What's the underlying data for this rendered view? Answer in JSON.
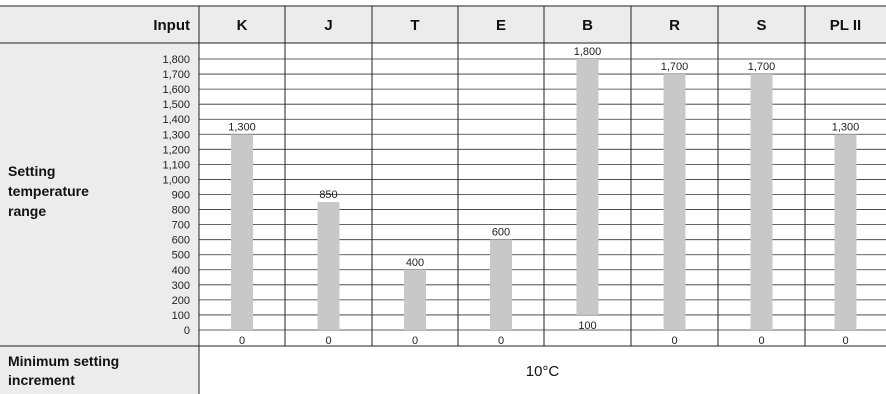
{
  "chart_data": {
    "type": "bar",
    "header_label": "Input",
    "categories": [
      "K",
      "J",
      "T",
      "E",
      "B",
      "R",
      "S",
      "PL II"
    ],
    "ranges": [
      {
        "min": 0,
        "max": 1300
      },
      {
        "min": 0,
        "max": 850
      },
      {
        "min": 0,
        "max": 400
      },
      {
        "min": 0,
        "max": 600
      },
      {
        "min": 100,
        "max": 1800
      },
      {
        "min": 0,
        "max": 1700
      },
      {
        "min": 0,
        "max": 1700
      },
      {
        "min": 0,
        "max": 1300
      }
    ],
    "top_labels": [
      "1,300",
      "850",
      "400",
      "600",
      "1,800",
      "1,700",
      "1,700",
      "1,300"
    ],
    "bottom_labels": [
      "0",
      "0",
      "0",
      "0",
      "100",
      "0",
      "0",
      "0"
    ],
    "yticks": [
      0,
      100,
      200,
      300,
      400,
      500,
      600,
      700,
      800,
      900,
      1000,
      1100,
      1200,
      1300,
      1400,
      1500,
      1600,
      1700,
      1800
    ],
    "ytick_labels": [
      "0",
      "100",
      "200",
      "300",
      "400",
      "500",
      "600",
      "700",
      "800",
      "900",
      "1,000",
      "1,100",
      "1,200",
      "1,300",
      "1,400",
      "1,500",
      "1,600",
      "1,700",
      "1,800"
    ],
    "ylim": [
      0,
      1800
    ],
    "ylabel": "Setting temperature range",
    "grid": true,
    "bar_color": "#c8c8c8",
    "header_bg": "#ececec",
    "footer_label": "Minimum setting increment",
    "footer_value": "10°C"
  }
}
